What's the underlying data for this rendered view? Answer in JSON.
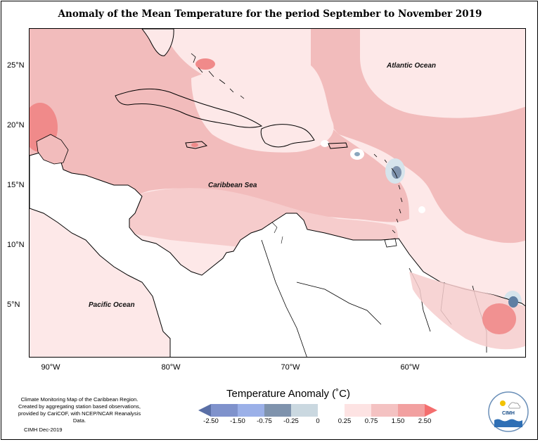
{
  "title": "Anomaly of the Mean Temperature for the period September to November 2019",
  "map": {
    "latitude_labels": [
      "25°N",
      "20°N",
      "15°N",
      "10°N",
      "5°N"
    ],
    "longitude_labels": [
      "90°W",
      "80°W",
      "70°W",
      "60°W"
    ],
    "place_labels": {
      "atlantic": "Atlantic Ocean",
      "caribbean": "Caribbean Sea",
      "pacific": "Pacific Ocean"
    },
    "colors": {
      "land": "#ffffff",
      "anomaly_0_025": "#fde8e8",
      "anomaly_025_075": "#f5cccc",
      "anomaly_075_150": "#f0b2b2",
      "anomaly_150_250": "#f08a8a",
      "anomaly_neg_025_0": "#d6e4ec",
      "anomaly_neg_075_025": "#8aa7be",
      "anomaly_neg_150_075": "#5f7fa3",
      "coastline": "#000000"
    }
  },
  "legend": {
    "title": "Temperature Anomaly (˚C)",
    "ticks": [
      "-2.50",
      "-1.50",
      "-0.75",
      "-0.25",
      "0",
      "0.25",
      "0.75",
      "1.50",
      "2.50"
    ],
    "colors": [
      "#5a6fa6",
      "#7f92cc",
      "#9bb0e8",
      "#7f93ad",
      "#cad8e0",
      "#ffffff",
      "#fde3e3",
      "#f4c2c2",
      "#f2a0a0",
      "#f46e6e"
    ]
  },
  "credits": {
    "line1": "Climate Monitoring Map of the Caribbean Region.",
    "line2": "Created by aggregating station based observations,",
    "line3": "provided by CariCOF, with NCEP/NCAR Reanalysis Data.",
    "date": "CIMH Dec-2019"
  },
  "logo": {
    "text": "CIMH"
  }
}
